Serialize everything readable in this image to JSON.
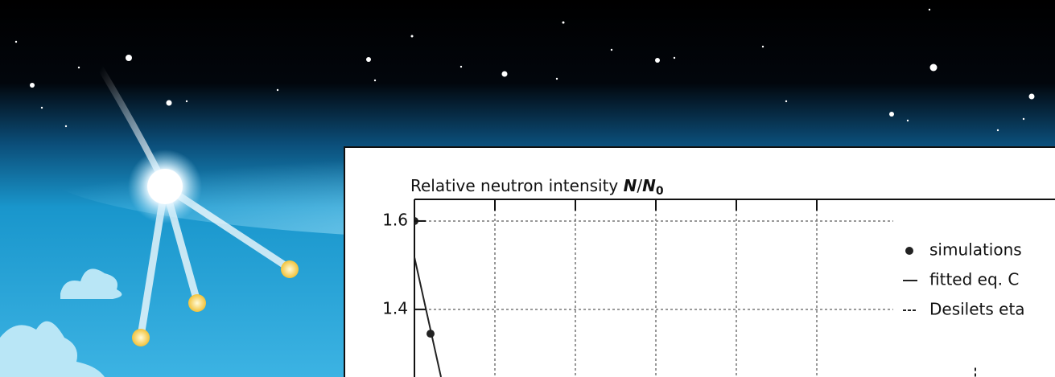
{
  "chart_data": {
    "type": "line",
    "ylabel": [
      "Relative neutron intensity ",
      "N",
      "/",
      "N",
      "0"
    ],
    "xlim": [
      0,
      7.96
    ],
    "xticks": [
      1,
      2,
      3,
      4,
      5
    ],
    "ylim": [
      1.247,
      1.649
    ],
    "yticks": [
      1.4,
      1.6
    ],
    "grid": true,
    "series": [
      {
        "name": "simulations",
        "style": "points",
        "color": "#222222",
        "x": [
          0,
          0.2
        ],
        "values": [
          1.6,
          1.345
        ]
      },
      {
        "name": "fitted eq. C",
        "style": "solid",
        "color": "#222222",
        "x": [
          0,
          0.33
        ],
        "values": [
          1.518,
          1.247
        ]
      },
      {
        "name": "Desilets eta",
        "style": "dashed",
        "color": "#222222",
        "x": [
          6.97,
          6.97
        ],
        "values": [
          1.268,
          1.247
        ]
      }
    ]
  }
}
